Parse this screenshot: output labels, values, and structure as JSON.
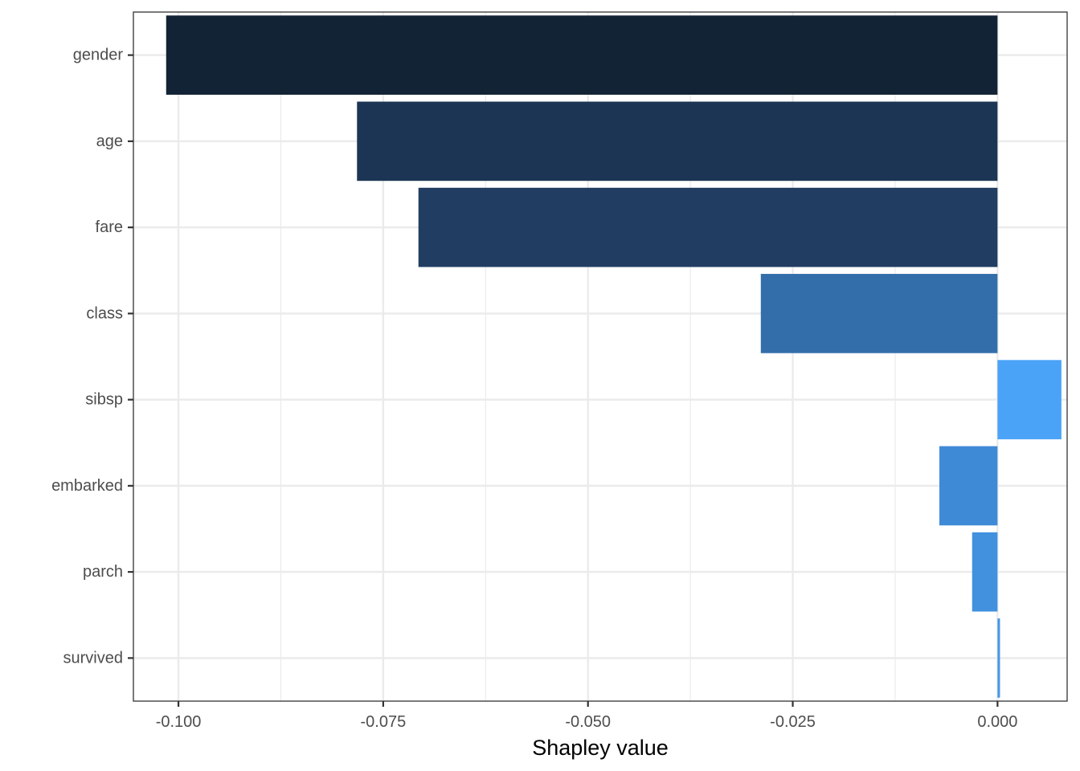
{
  "chart_data": {
    "type": "bar",
    "orientation": "horizontal",
    "title": "",
    "xlabel": "Shapley value",
    "ylabel": "",
    "xlim": [
      -0.1055,
      0.0085
    ],
    "x_ticks": [
      -0.1,
      -0.075,
      -0.05,
      -0.025,
      0.0
    ],
    "x_tick_labels": [
      "-0.100",
      "-0.075",
      "-0.050",
      "-0.025",
      "0.000"
    ],
    "grid": true,
    "legend": "none",
    "categories": [
      "gender",
      "age",
      "fare",
      "class",
      "sibsp",
      "embarked",
      "parch",
      "survived"
    ],
    "values": [
      -0.1015,
      -0.0782,
      -0.0707,
      -0.0289,
      0.0078,
      -0.0071,
      -0.0031,
      0.0003
    ],
    "colors": [
      "#132336",
      "#1c3554",
      "#213d62",
      "#336eab",
      "#4aa3f7",
      "#3f8ad7",
      "#4191de",
      "#4596e6"
    ]
  }
}
